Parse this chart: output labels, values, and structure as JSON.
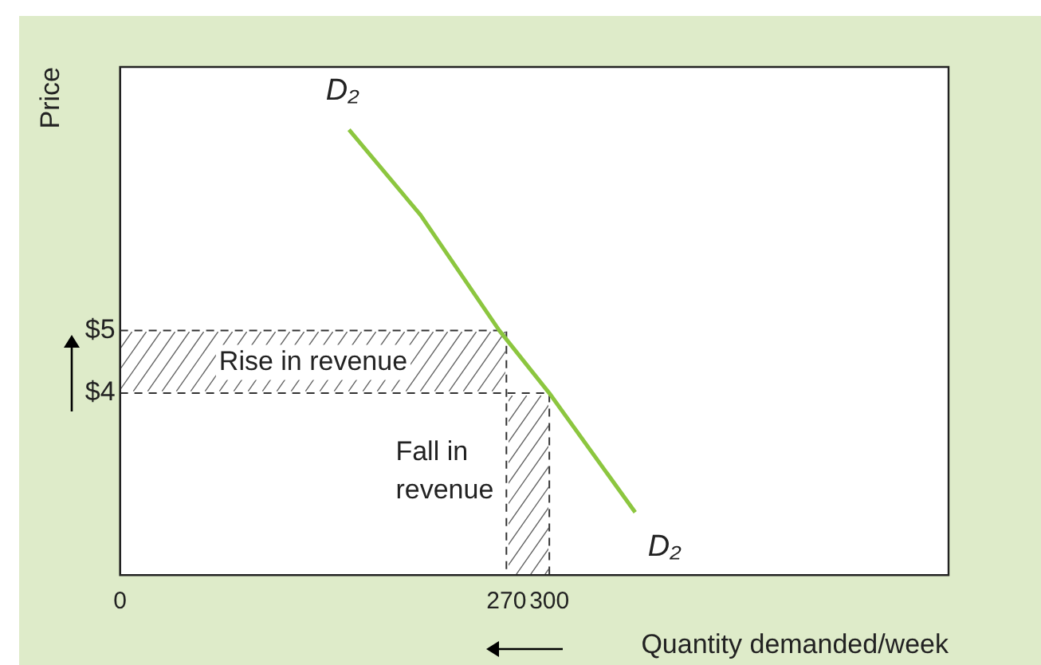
{
  "chart_data": {
    "type": "line",
    "xlabel": "Quantity demanded/week",
    "ylabel": "Price",
    "x": [
      160,
      210,
      265,
      300,
      360
    ],
    "series": [
      {
        "color": "#8cc63f",
        "values": [
          8.2,
          6.84,
          5,
          4,
          2.1
        ]
      },
      {
        "color": "#333333",
        "x": [
          0,
          270,
          270
        ],
        "values": [
          5,
          5,
          1.1
        ],
        "line_style": "dashed"
      },
      {
        "color": "#333333",
        "x": [
          0,
          300,
          300
        ],
        "values": [
          4,
          4,
          1.1
        ],
        "line_style": "dashed"
      }
    ],
    "xlim": [
      0,
      579
    ],
    "ylim": [
      1.1,
      9.2
    ],
    "xticks": [
      0,
      270,
      300
    ],
    "yticks": [
      {
        "value": 4,
        "label": "$4"
      },
      {
        "value": 5,
        "label": "$5"
      }
    ],
    "annotations": [
      {
        "text": "D₂",
        "x": 160,
        "y": 8.2
      },
      {
        "text": "D₂",
        "x": 360,
        "y": 2.1
      },
      {
        "text": "Rise in revenue",
        "x": 135,
        "y": 5
      },
      {
        "text": "Fall in\nrevenue",
        "x": 270,
        "y": 2.75
      }
    ],
    "grid": false,
    "legend": false,
    "marker": "none",
    "line_style": "solid"
  }
}
